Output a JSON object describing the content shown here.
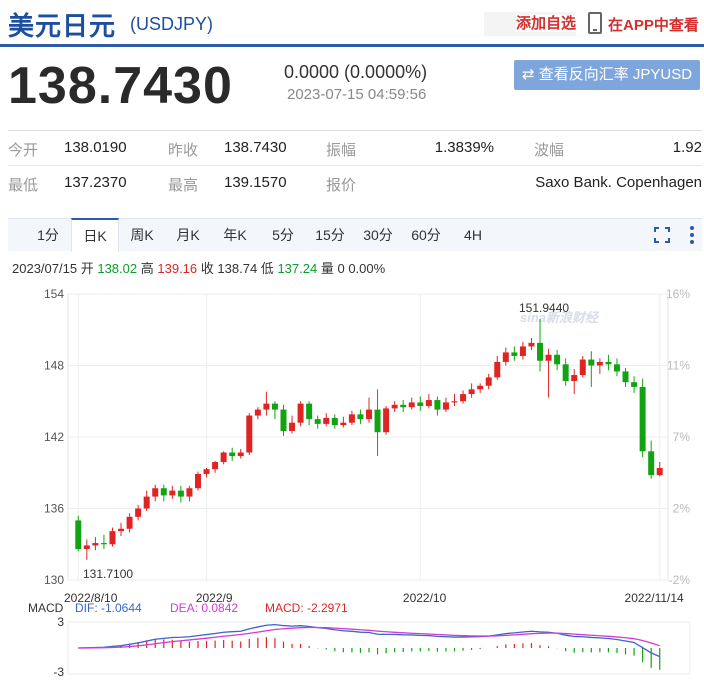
{
  "header": {
    "title": "美元日元",
    "code": "(USDJPY)",
    "add_watch": "添加自选",
    "app_link": "在APP中查看"
  },
  "quote": {
    "price": "138.7430",
    "change": "0.0000 (0.0000%)",
    "time": "2023-07-15 04:59:56",
    "reverse_btn": "⇄ 查看反向汇率 JPYUSD"
  },
  "stats": {
    "row1": [
      {
        "label": "今开",
        "value": "138.0190"
      },
      {
        "label": "昨收",
        "value": "138.7430"
      },
      {
        "label": "振幅",
        "value": "1.3839%"
      },
      {
        "label": "波幅",
        "value": "1.92"
      }
    ],
    "row2": [
      {
        "label": "最低",
        "value": "137.2370"
      },
      {
        "label": "最高",
        "value": "139.1570"
      },
      {
        "label": "报价",
        "value": "Saxo Bank. Copenhagen"
      }
    ]
  },
  "tabs": [
    "1分",
    "日K",
    "周K",
    "月K",
    "年K",
    "5分",
    "15分",
    "30分",
    "60分",
    "4H"
  ],
  "active_tab": "日K",
  "ohlc": {
    "date": "2023/07/15",
    "open_label": "开",
    "open": "138.02",
    "high_label": "高",
    "high": "139.16",
    "close_label": "收",
    "close": "138.74",
    "low_label": "低",
    "low": "137.24",
    "vol_label": "量",
    "vol": "0",
    "pct": "0.00%"
  },
  "chart_data": {
    "type": "candlestick",
    "y_ticks": [
      "154",
      "148",
      "142",
      "136",
      "130"
    ],
    "pct_ticks": [
      "16%",
      "11%",
      "7%",
      "2%",
      "-2%"
    ],
    "x_labels": [
      "2022/8/10",
      "2022/9",
      "2022/10",
      "2022/11/14"
    ],
    "max_label": "151.9440",
    "min_label": "131.7100",
    "ylim": [
      130,
      154
    ],
    "watermark": "sina新浪财经",
    "candles": [
      [
        135.0,
        132.6,
        135.4,
        132.4
      ],
      [
        132.6,
        132.9,
        133.4,
        131.7
      ],
      [
        132.9,
        133.1,
        133.6,
        132.5
      ],
      [
        133.1,
        133.0,
        133.8,
        132.6
      ],
      [
        133.0,
        134.1,
        134.4,
        132.8
      ],
      [
        134.1,
        134.3,
        134.8,
        133.7
      ],
      [
        134.3,
        135.3,
        135.6,
        134.0
      ],
      [
        135.3,
        136.0,
        136.3,
        135.0
      ],
      [
        136.0,
        137.0,
        137.5,
        135.8
      ],
      [
        137.0,
        137.7,
        138.0,
        136.6
      ],
      [
        137.7,
        137.1,
        138.0,
        136.6
      ],
      [
        137.1,
        137.5,
        137.9,
        136.8
      ],
      [
        137.5,
        137.0,
        137.9,
        136.5
      ],
      [
        137.0,
        137.7,
        137.9,
        136.6
      ],
      [
        137.7,
        138.9,
        139.1,
        137.5
      ],
      [
        138.9,
        139.3,
        139.4,
        138.6
      ],
      [
        139.3,
        139.9,
        140.0,
        139.0
      ],
      [
        139.9,
        140.7,
        140.8,
        139.7
      ],
      [
        140.7,
        140.4,
        141.1,
        140.0
      ],
      [
        140.4,
        140.7,
        141.0,
        140.2
      ],
      [
        140.7,
        143.8,
        144.0,
        140.5
      ],
      [
        143.8,
        144.3,
        144.5,
        143.5
      ],
      [
        144.3,
        144.8,
        145.8,
        143.8
      ],
      [
        144.8,
        144.3,
        145.0,
        143.5
      ],
      [
        144.3,
        142.5,
        144.7,
        142.1
      ],
      [
        142.5,
        143.2,
        143.8,
        142.3
      ],
      [
        143.2,
        144.8,
        145.0,
        142.9
      ],
      [
        144.8,
        143.5,
        145.0,
        143.0
      ],
      [
        143.5,
        143.1,
        143.8,
        142.7
      ],
      [
        143.1,
        143.6,
        144.0,
        142.9
      ],
      [
        143.6,
        143.0,
        143.9,
        142.7
      ],
      [
        143.0,
        143.2,
        143.7,
        142.8
      ],
      [
        143.2,
        143.9,
        144.2,
        143.0
      ],
      [
        143.9,
        143.5,
        144.3,
        143.1
      ],
      [
        143.5,
        144.3,
        145.3,
        143.2
      ],
      [
        144.3,
        142.4,
        146.0,
        140.4
      ],
      [
        142.4,
        144.4,
        144.6,
        142.2
      ],
      [
        144.4,
        144.7,
        145.0,
        144.1
      ],
      [
        144.7,
        144.5,
        145.1,
        144.1
      ],
      [
        144.5,
        144.9,
        145.3,
        144.3
      ],
      [
        144.9,
        144.6,
        145.4,
        144.2
      ],
      [
        144.6,
        145.1,
        145.6,
        144.4
      ],
      [
        145.1,
        144.3,
        145.4,
        143.8
      ],
      [
        144.3,
        144.9,
        145.3,
        144.1
      ],
      [
        144.9,
        145.0,
        145.6,
        144.6
      ],
      [
        145.0,
        145.6,
        145.9,
        144.8
      ],
      [
        145.6,
        146.0,
        146.5,
        145.3
      ],
      [
        146.0,
        146.3,
        146.5,
        145.7
      ],
      [
        146.3,
        147.0,
        147.3,
        146.0
      ],
      [
        147.0,
        148.3,
        148.8,
        146.8
      ],
      [
        148.3,
        149.1,
        149.5,
        148.0
      ],
      [
        149.1,
        148.8,
        149.6,
        148.4
      ],
      [
        148.8,
        149.6,
        150.0,
        148.5
      ],
      [
        149.6,
        149.9,
        150.3,
        149.3
      ],
      [
        149.9,
        148.4,
        151.9,
        147.5
      ],
      [
        148.4,
        148.9,
        149.4,
        145.3
      ],
      [
        148.9,
        148.1,
        149.3,
        147.6
      ],
      [
        148.1,
        146.7,
        148.6,
        146.3
      ],
      [
        146.7,
        147.2,
        147.7,
        145.6
      ],
      [
        147.2,
        148.5,
        148.8,
        147.0
      ],
      [
        148.5,
        148.0,
        149.2,
        146.2
      ],
      [
        148.0,
        148.3,
        148.6,
        147.3
      ],
      [
        148.3,
        148.1,
        148.9,
        147.6
      ],
      [
        148.1,
        147.5,
        148.6,
        147.1
      ],
      [
        147.5,
        146.6,
        147.8,
        146.2
      ],
      [
        146.6,
        146.2,
        147.1,
        145.7
      ],
      [
        146.2,
        140.8,
        146.9,
        140.3
      ],
      [
        140.8,
        138.8,
        141.7,
        138.5
      ],
      [
        138.8,
        139.4,
        139.9,
        138.7
      ]
    ],
    "macd": {
      "dif": "DIF: -1.0644",
      "dea": "DEA: 0.0842",
      "macd": "MACD: -2.2971",
      "label": "MACD",
      "ticks": [
        "3",
        "-3"
      ]
    }
  }
}
